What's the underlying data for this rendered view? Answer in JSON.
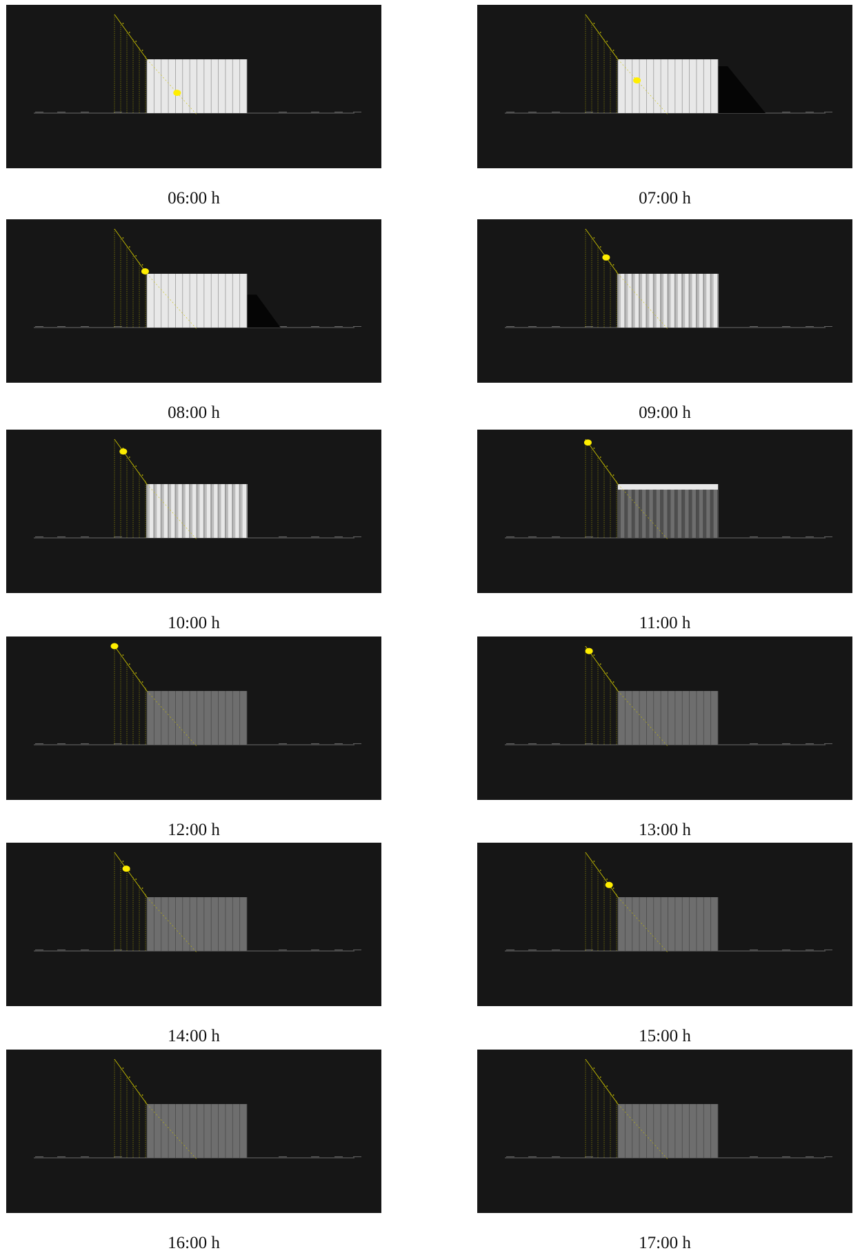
{
  "figure": {
    "panels": [
      {
        "time_label": "06:00 h",
        "sun_t": 0.82,
        "shadow": 0.0,
        "facade": "lit-flat"
      },
      {
        "time_label": "07:00 h",
        "sun_t": 0.72,
        "shadow": 1.0,
        "facade": "lit-flat"
      },
      {
        "time_label": "08:00 h",
        "sun_t": 0.52,
        "shadow": 0.55,
        "facade": "lit-flat"
      },
      {
        "time_label": "09:00 h",
        "sun_t": 0.35,
        "shadow": 0.0,
        "facade": "lit-ribbed"
      },
      {
        "time_label": "10:00 h",
        "sun_t": 0.15,
        "shadow": 0.0,
        "facade": "lit-ribbed"
      },
      {
        "time_label": "11:00 h",
        "sun_t": 0.04,
        "shadow": 0.0,
        "facade": "grey-ribbed"
      },
      {
        "time_label": "12:00 h",
        "sun_t": 0.0,
        "shadow": 0.0,
        "facade": "grey"
      },
      {
        "time_label": "13:00 h",
        "sun_t": 0.06,
        "shadow": 0.0,
        "facade": "grey"
      },
      {
        "time_label": "14:00 h",
        "sun_t": 0.2,
        "shadow": 0.0,
        "facade": "grey"
      },
      {
        "time_label": "15:00 h",
        "sun_t": 0.4,
        "shadow": 0.0,
        "facade": "grey"
      },
      {
        "time_label": "16:00 h",
        "sun_t": null,
        "shadow": 0.0,
        "facade": "grey"
      },
      {
        "time_label": "17:00 h",
        "sun_t": null,
        "shadow": 0.0,
        "facade": "grey"
      }
    ]
  },
  "colors": {
    "background": "#161616",
    "sun": "#ffee00",
    "sunpath": "#c8c000",
    "facade_lit": "#e8e8e8",
    "facade_grey": "#6e6e6e",
    "shadow": "#050505",
    "ground": "#8a8a8a"
  }
}
